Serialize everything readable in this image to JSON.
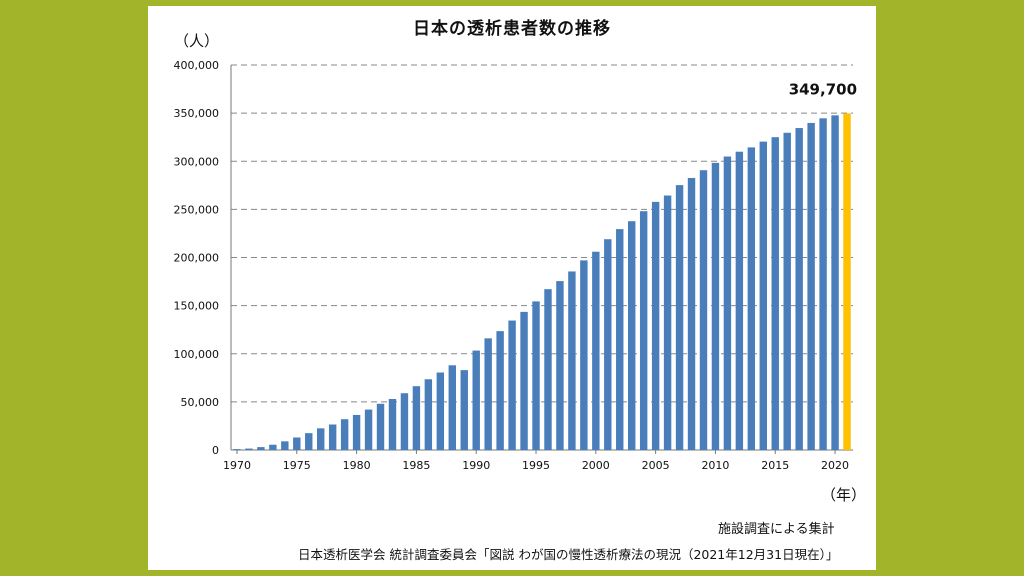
{
  "colors": {
    "frame": "#a2b52a",
    "bar": "#4a7ebb",
    "highlight": "#ffc000",
    "grid": "#888888"
  },
  "notes": {
    "survey": "施設調査による集計",
    "source": "日本透析医学会 統計調査委員会「図説 わが国の慢性透析療法の現況（2021年12月31日現在）」"
  },
  "chart_data": {
    "type": "bar",
    "title": "日本の透析患者数の推移",
    "ylabel": "（人）",
    "xlabel": "（年）",
    "ylim": [
      0,
      400000
    ],
    "yticks": [
      0,
      50000,
      100000,
      150000,
      200000,
      250000,
      300000,
      350000,
      400000
    ],
    "ytick_labels": [
      "0",
      "50,000",
      "100,000",
      "150,000",
      "200,000",
      "250,000",
      "300,000",
      "350,000",
      "400,000"
    ],
    "xtick_labels": [
      "1970",
      "1975",
      "1980",
      "1985",
      "1990",
      "1995",
      "2000",
      "2005",
      "2010",
      "2015",
      "2020"
    ],
    "grid": "horizontal dashed",
    "highlight_annotation": "349,700",
    "categories": [
      1970,
      1971,
      1972,
      1973,
      1974,
      1975,
      1976,
      1977,
      1978,
      1979,
      1980,
      1981,
      1982,
      1983,
      1984,
      1985,
      1986,
      1987,
      1988,
      1989,
      1990,
      1991,
      1992,
      1993,
      1994,
      1995,
      1996,
      1997,
      1998,
      1999,
      2000,
      2001,
      2002,
      2003,
      2004,
      2005,
      2006,
      2007,
      2008,
      2009,
      2010,
      2011,
      2012,
      2013,
      2014,
      2015,
      2016,
      2017,
      2018,
      2019,
      2020,
      2021
    ],
    "values": [
      949,
      1500,
      3000,
      5500,
      9000,
      13000,
      17500,
      22500,
      26500,
      32000,
      36400,
      42000,
      48000,
      53000,
      59000,
      66300,
      73500,
      80500,
      88000,
      83000,
      103300,
      116000,
      123500,
      134500,
      143500,
      154400,
      167100,
      175500,
      185500,
      197000,
      206000,
      219000,
      229500,
      237700,
      248100,
      257800,
      264400,
      275200,
      282600,
      290700,
      298300,
      304900,
      309900,
      314400,
      320400,
      325000,
      329600,
      334500,
      339800,
      344600,
      347700,
      349700
    ],
    "highlight_index": 51
  }
}
